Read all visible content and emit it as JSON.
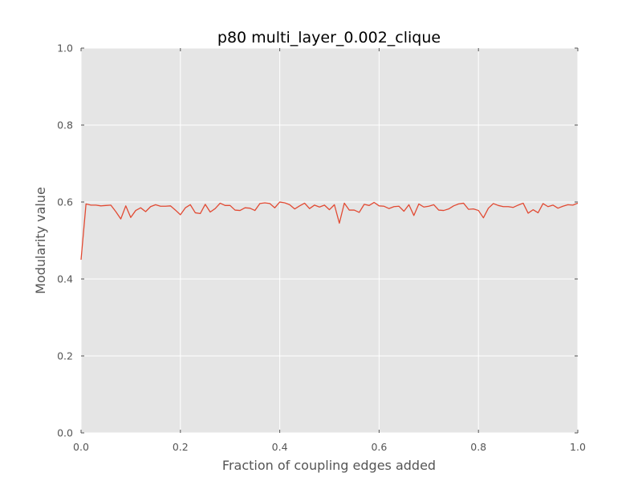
{
  "chart_data": {
    "type": "line",
    "title": "p80 multi_layer_0.002_clique",
    "xlabel": "Fraction of coupling edges added",
    "ylabel": "Modularity value",
    "xlim": [
      0.0,
      1.0
    ],
    "ylim": [
      0.0,
      1.0
    ],
    "xticks": [
      0.0,
      0.2,
      0.4,
      0.6,
      0.8,
      1.0
    ],
    "xtick_labels": [
      "0.0",
      "0.2",
      "0.4",
      "0.6",
      "0.8",
      "1.0"
    ],
    "yticks": [
      0.0,
      0.2,
      0.4,
      0.6,
      0.8,
      1.0
    ],
    "ytick_labels": [
      "0.0",
      "0.2",
      "0.4",
      "0.6",
      "0.8",
      "1.0"
    ],
    "grid": true,
    "legend": "none",
    "colors": {
      "background": "#e5e5e5",
      "grid": "#ffffff",
      "line": "#e24a33",
      "tick": "#555555"
    },
    "series": [
      {
        "x": [
          0.0,
          0.01,
          0.02,
          0.03,
          0.04,
          0.05,
          0.06,
          0.07,
          0.08,
          0.09,
          0.1,
          0.11,
          0.12,
          0.13,
          0.14,
          0.15,
          0.16,
          0.17,
          0.18,
          0.19,
          0.2,
          0.21,
          0.22,
          0.23,
          0.24,
          0.25,
          0.26,
          0.27,
          0.28,
          0.29,
          0.3,
          0.31,
          0.32,
          0.33,
          0.34,
          0.35,
          0.36,
          0.37,
          0.38,
          0.39,
          0.4,
          0.41,
          0.42,
          0.43,
          0.44,
          0.45,
          0.46,
          0.47,
          0.48,
          0.49,
          0.5,
          0.51,
          0.52,
          0.53,
          0.54,
          0.55,
          0.56,
          0.57,
          0.58,
          0.59,
          0.6,
          0.61,
          0.62,
          0.63,
          0.64,
          0.65,
          0.66,
          0.67,
          0.68,
          0.69,
          0.7,
          0.71,
          0.72,
          0.73,
          0.74,
          0.75,
          0.76,
          0.77,
          0.78,
          0.79,
          0.8,
          0.81,
          0.82,
          0.83,
          0.84,
          0.85,
          0.86,
          0.87,
          0.88,
          0.89,
          0.9,
          0.91,
          0.92,
          0.93,
          0.94,
          0.95,
          0.96,
          0.97,
          0.98,
          0.99,
          1.0
        ],
        "values": [
          0.45,
          0.595,
          0.592,
          0.592,
          0.59,
          0.591,
          0.592,
          0.575,
          0.556,
          0.59,
          0.56,
          0.578,
          0.585,
          0.575,
          0.588,
          0.593,
          0.589,
          0.589,
          0.59,
          0.579,
          0.567,
          0.585,
          0.593,
          0.572,
          0.57,
          0.594,
          0.574,
          0.583,
          0.597,
          0.591,
          0.591,
          0.579,
          0.578,
          0.585,
          0.584,
          0.578,
          0.596,
          0.598,
          0.596,
          0.585,
          0.6,
          0.598,
          0.593,
          0.582,
          0.59,
          0.597,
          0.583,
          0.592,
          0.587,
          0.592,
          0.58,
          0.593,
          0.545,
          0.597,
          0.579,
          0.579,
          0.573,
          0.594,
          0.591,
          0.599,
          0.59,
          0.589,
          0.583,
          0.588,
          0.589,
          0.576,
          0.593,
          0.565,
          0.595,
          0.587,
          0.589,
          0.593,
          0.579,
          0.578,
          0.582,
          0.59,
          0.595,
          0.597,
          0.581,
          0.582,
          0.578,
          0.559,
          0.584,
          0.596,
          0.591,
          0.588,
          0.588,
          0.586,
          0.592,
          0.597,
          0.571,
          0.58,
          0.572,
          0.596,
          0.588,
          0.592,
          0.584,
          0.589,
          0.593,
          0.592,
          0.597
        ]
      }
    ]
  }
}
